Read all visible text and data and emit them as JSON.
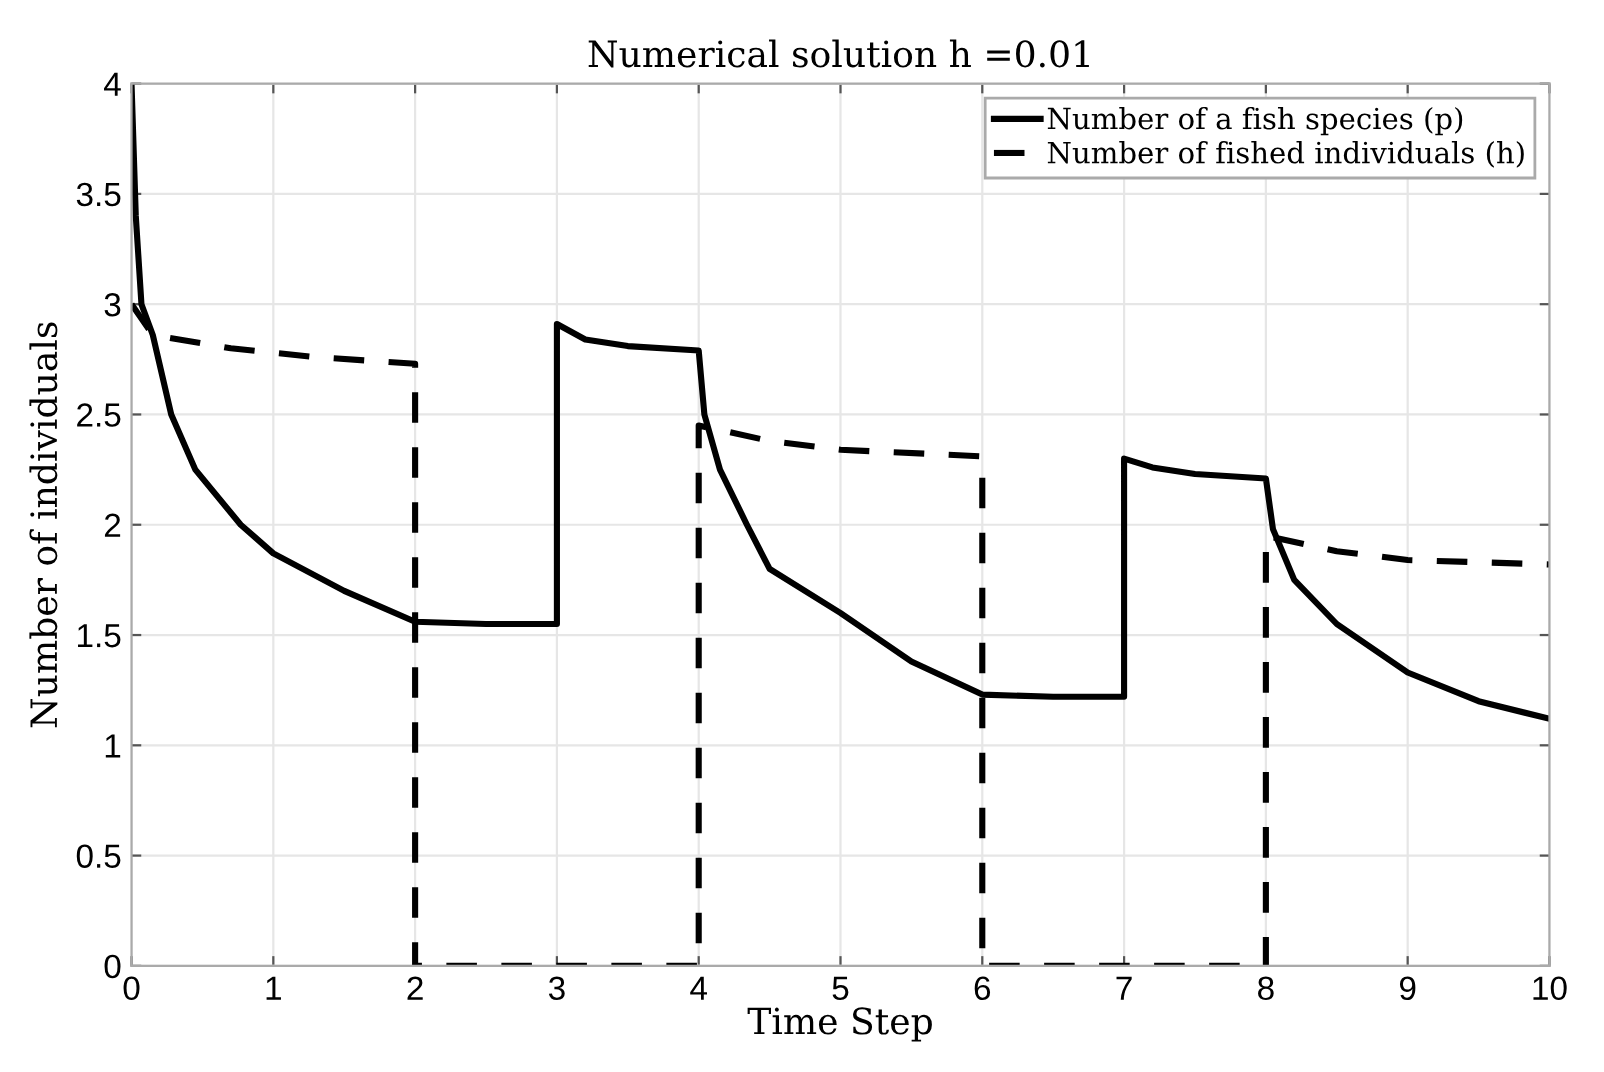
{
  "chart_data": {
    "type": "line",
    "title": "Numerical solution h =0.01",
    "xlabel": "Time Step",
    "ylabel": "Number of individuals",
    "xlim": [
      0,
      10
    ],
    "ylim": [
      0,
      4
    ],
    "xticks": [
      0,
      1,
      2,
      3,
      4,
      5,
      6,
      7,
      8,
      9,
      10
    ],
    "yticks": [
      0,
      0.5,
      1,
      1.5,
      2,
      2.5,
      3,
      3.5,
      4
    ],
    "grid": true,
    "legend": "top right",
    "series": [
      {
        "name": "Number of a fish species (p)",
        "color": "#000000",
        "line_style": "solid",
        "x": [
          0,
          0.03,
          0.07,
          0.15,
          0.28,
          0.45,
          0.77,
          1,
          1.5,
          2,
          2.5,
          3,
          3,
          3.2,
          3.5,
          4,
          4.04,
          4.15,
          4.34,
          4.5,
          5,
          5.5,
          6,
          6.5,
          7,
          7,
          7.2,
          7.5,
          8,
          8.05,
          8.2,
          8.5,
          9,
          9.5,
          10
        ],
        "values": [
          4,
          3.4,
          3,
          2.86,
          2.5,
          2.25,
          2,
          1.87,
          1.7,
          1.56,
          1.55,
          1.55,
          2.91,
          2.84,
          2.81,
          2.79,
          2.5,
          2.25,
          2,
          1.8,
          1.6,
          1.38,
          1.23,
          1.22,
          1.22,
          2.3,
          2.26,
          2.23,
          2.21,
          1.98,
          1.75,
          1.55,
          1.33,
          1.2,
          1.12
        ]
      },
      {
        "name": "Number of fished individuals (h)",
        "color": "#000000",
        "line_style": "dashed",
        "x": [
          0,
          0.15,
          0.7,
          1.3,
          2,
          2,
          4,
          4,
          4.5,
          5,
          6,
          6,
          8,
          8,
          8.5,
          9,
          10
        ],
        "values": [
          3,
          2.86,
          2.8,
          2.76,
          2.73,
          0,
          0,
          2.45,
          2.38,
          2.34,
          2.31,
          0,
          0,
          1.95,
          1.88,
          1.84,
          1.82
        ]
      }
    ]
  }
}
